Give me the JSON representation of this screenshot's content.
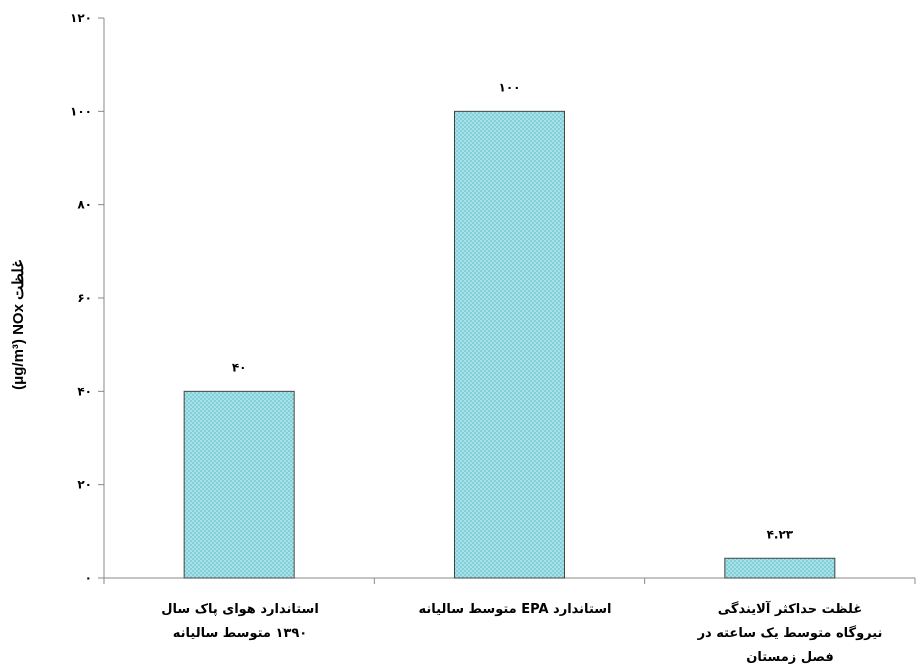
{
  "chart_data": {
    "type": "bar",
    "categories": [
      "استاندارد هوای پاک سال\n۱۳۹۰ متوسط سالیانه",
      "استاندارد EPA متوسط سالیانه",
      "غلظت حداکثر آلایندگی\nنیروگاه متوسط یک ساعته در\nفصل زمستان"
    ],
    "values": [
      40,
      100,
      4.23
    ],
    "data_labels": [
      "۴۰",
      "۱۰۰",
      "۴.۲۳"
    ],
    "ylabel": "(μg/m³) NOx غلظت",
    "ylim": [
      0,
      120
    ],
    "yticks": [
      0,
      20,
      40,
      60,
      80,
      100,
      120
    ],
    "ytick_labels": [
      "۰",
      "۲۰",
      "۴۰",
      "۶۰",
      "۸۰",
      "۱۰۰",
      "۱۲۰"
    ],
    "grid": false,
    "legend": "none",
    "bar_color": "#7fd0d8",
    "bar_pattern_dot_color": "#c9eef0",
    "bar_border_color": "#444444"
  }
}
